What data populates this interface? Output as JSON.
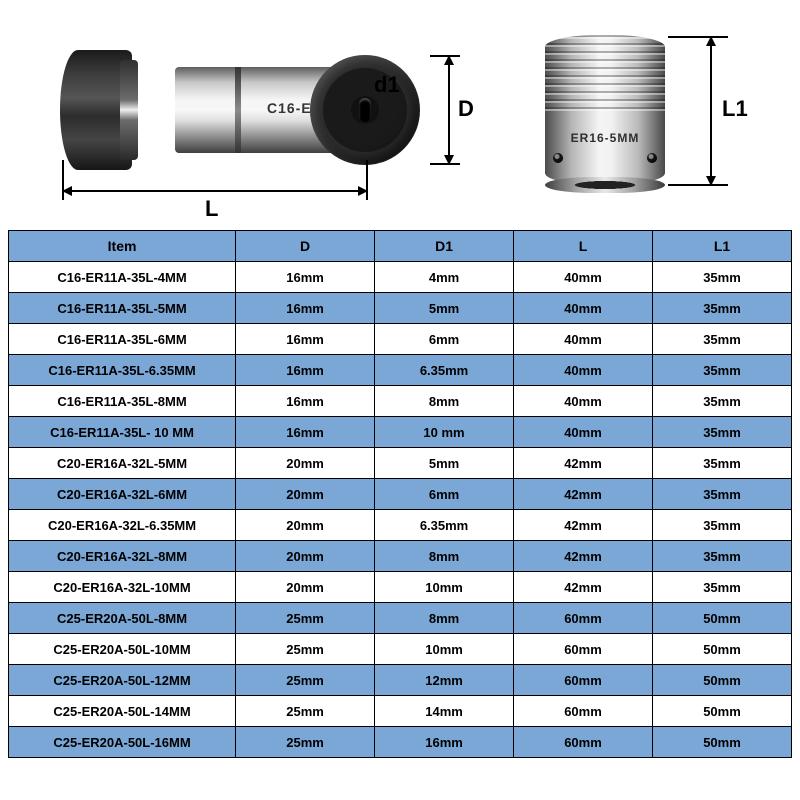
{
  "diagram": {
    "left_product_label": "C16-ER11-4",
    "right_product_label": "ER16-5MM",
    "dim_d1": "d1",
    "dim_D": "D",
    "dim_L": "L",
    "dim_L1": "L1"
  },
  "table": {
    "header_color": "#7ba7d7",
    "alt_row_color": "#7ba7d7",
    "border_color": "#000000",
    "font_size_header": 14,
    "font_size_cell": 13,
    "columns": [
      "Item",
      "D",
      "D1",
      "L",
      "L1"
    ],
    "rows": [
      [
        "C16-ER11A-35L-4MM",
        "16mm",
        "4mm",
        "40mm",
        "35mm"
      ],
      [
        "C16-ER11A-35L-5MM",
        "16mm",
        "5mm",
        "40mm",
        "35mm"
      ],
      [
        "C16-ER11A-35L-6MM",
        "16mm",
        "6mm",
        "40mm",
        "35mm"
      ],
      [
        "C16-ER11A-35L-6.35MM",
        "16mm",
        "6.35mm",
        "40mm",
        "35mm"
      ],
      [
        "C16-ER11A-35L-8MM",
        "16mm",
        "8mm",
        "40mm",
        "35mm"
      ],
      [
        "C16-ER11A-35L- 10 MM",
        "16mm",
        "10 mm",
        "40mm",
        "35mm"
      ],
      [
        "C20-ER16A-32L-5MM",
        "20mm",
        "5mm",
        "42mm",
        "35mm"
      ],
      [
        "C20-ER16A-32L-6MM",
        "20mm",
        "6mm",
        "42mm",
        "35mm"
      ],
      [
        "C20-ER16A-32L-6.35MM",
        "20mm",
        "6.35mm",
        "42mm",
        "35mm"
      ],
      [
        "C20-ER16A-32L-8MM",
        "20mm",
        "8mm",
        "42mm",
        "35mm"
      ],
      [
        "C20-ER16A-32L-10MM",
        "20mm",
        "10mm",
        "42mm",
        "35mm"
      ],
      [
        "C25-ER20A-50L-8MM",
        "25mm",
        "8mm",
        "60mm",
        "50mm"
      ],
      [
        "C25-ER20A-50L-10MM",
        "25mm",
        "10mm",
        "60mm",
        "50mm"
      ],
      [
        "C25-ER20A-50L-12MM",
        "25mm",
        "12mm",
        "60mm",
        "50mm"
      ],
      [
        "C25-ER20A-50L-14MM",
        "25mm",
        "14mm",
        "60mm",
        "50mm"
      ],
      [
        "C25-ER20A-50L-16MM",
        "25mm",
        "16mm",
        "60mm",
        "50mm"
      ]
    ]
  }
}
